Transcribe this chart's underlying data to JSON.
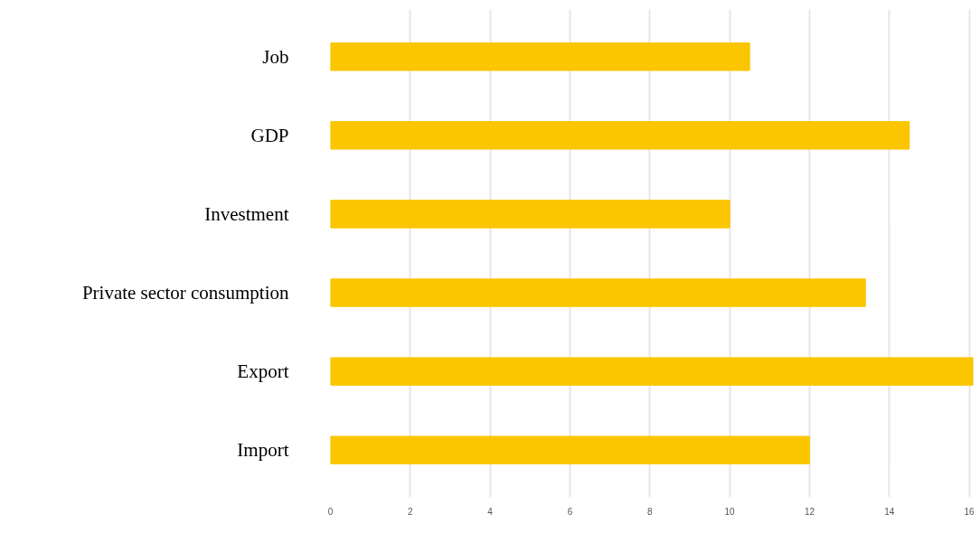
{
  "chart_data": {
    "type": "bar",
    "orientation": "horizontal",
    "categories": [
      "Job",
      "GDP",
      "Investment",
      "Private sector consumption",
      "Export",
      "Import"
    ],
    "values": [
      10.5,
      14.5,
      10,
      13.4,
      16.1,
      12
    ],
    "color": "#fbc500",
    "xlim": [
      0,
      16.1
    ],
    "xticks": [
      0,
      2,
      4,
      6,
      8,
      10,
      12,
      14,
      16
    ],
    "grid": "x"
  }
}
